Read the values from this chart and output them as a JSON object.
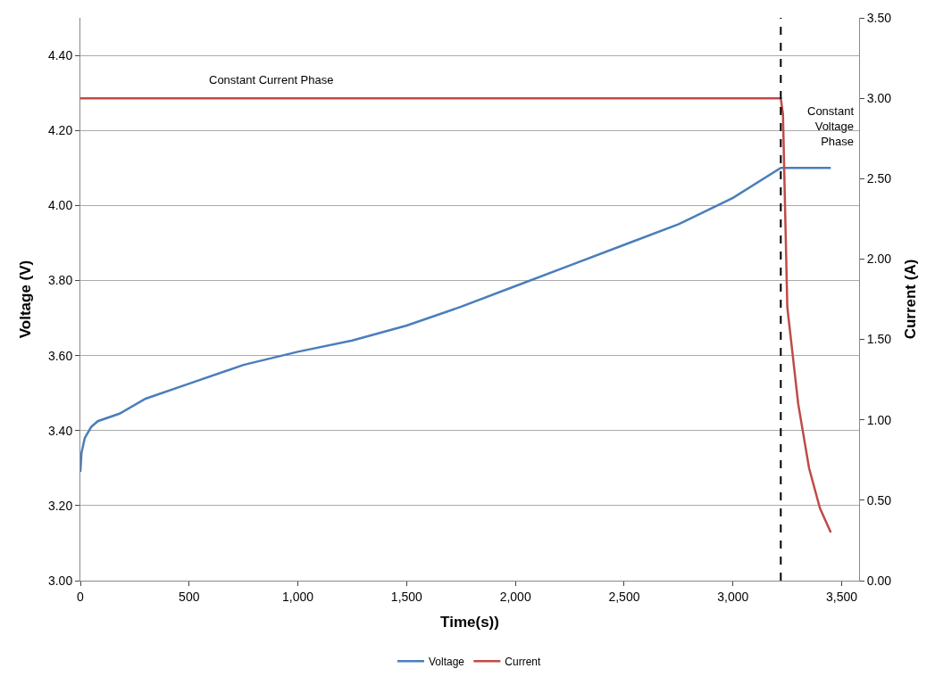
{
  "chart_data": {
    "type": "line",
    "xlabel": "Time(s))",
    "ylabel": "Voltage (V)",
    "y2label": "Current (A)",
    "xlim": [
      0,
      3580
    ],
    "xticks": [
      {
        "value": 0,
        "label": "0"
      },
      {
        "value": 500,
        "label": "500"
      },
      {
        "value": 1000,
        "label": "1,000"
      },
      {
        "value": 1500,
        "label": "1,500"
      },
      {
        "value": 2000,
        "label": "2,000"
      },
      {
        "value": 2500,
        "label": "2,500"
      },
      {
        "value": 3000,
        "label": "3,000"
      },
      {
        "value": 3500,
        "label": "3,500"
      }
    ],
    "ylim": [
      3.0,
      4.5
    ],
    "yticks": [
      {
        "value": 3.0,
        "label": "3.00"
      },
      {
        "value": 3.2,
        "label": "3.20"
      },
      {
        "value": 3.4,
        "label": "3.40"
      },
      {
        "value": 3.6,
        "label": "3.60"
      },
      {
        "value": 3.8,
        "label": "3.80"
      },
      {
        "value": 4.0,
        "label": "4.00"
      },
      {
        "value": 4.2,
        "label": "4.20"
      },
      {
        "value": 4.4,
        "label": "4.40"
      }
    ],
    "y2lim": [
      0,
      3.5
    ],
    "y2ticks": [
      {
        "value": 0,
        "label": "0.00"
      },
      {
        "value": 0.5,
        "label": "0.50"
      },
      {
        "value": 1.0,
        "label": "1.00"
      },
      {
        "value": 1.5,
        "label": "1.50"
      },
      {
        "value": 2.0,
        "label": "2.00"
      },
      {
        "value": 2.5,
        "label": "2.50"
      },
      {
        "value": 3.0,
        "label": "3.00"
      },
      {
        "value": 3.5,
        "label": "3.50"
      }
    ],
    "series": [
      {
        "name": "Voltage",
        "color": "#4a7ebb",
        "x": [
          0,
          5,
          20,
          50,
          80,
          180,
          300,
          500,
          750,
          1000,
          1250,
          1500,
          1750,
          2000,
          2250,
          2500,
          2750,
          3000,
          3220,
          3450
        ],
        "values": [
          3.29,
          3.34,
          3.38,
          3.41,
          3.425,
          3.445,
          3.485,
          3.525,
          3.575,
          3.61,
          3.64,
          3.68,
          3.73,
          3.785,
          3.84,
          3.895,
          3.95,
          4.02,
          4.1,
          4.1
        ]
      },
      {
        "name": "Current",
        "color": "#be4b48",
        "axis": "y2",
        "x": [
          0,
          1000,
          2000,
          3220,
          3230,
          3250,
          3300,
          3350,
          3400,
          3450
        ],
        "values": [
          3.0,
          3.0,
          3.0,
          3.0,
          2.9,
          1.7,
          1.1,
          0.7,
          0.45,
          0.3
        ]
      }
    ],
    "ref_lines": [
      {
        "axis": "x",
        "value": 3220,
        "color": "#000000",
        "line_style": "dashed"
      }
    ],
    "annotations": [
      "Constant Current Phase",
      "Constant\nVoltage\nPhase"
    ],
    "grid": "y",
    "legend": "bottom",
    "marker": "none",
    "line_style": "solid"
  }
}
